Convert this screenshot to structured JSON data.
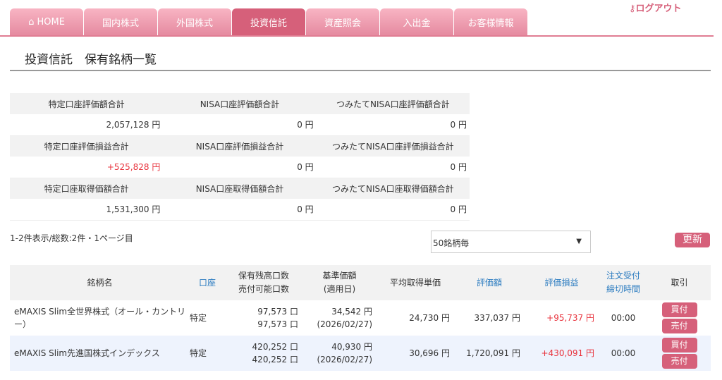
{
  "nav": {
    "tabs": [
      {
        "label": "HOME",
        "icon": "home-icon"
      },
      {
        "label": "国内株式"
      },
      {
        "label": "外国株式"
      },
      {
        "label": "投資信託",
        "active": true
      },
      {
        "label": "資産照会"
      },
      {
        "label": "入出金"
      },
      {
        "label": "お客様情報"
      }
    ],
    "logout": "ログアウト"
  },
  "page_title": "投資信託　保有銘柄一覧",
  "summary": [
    {
      "labels": [
        "特定口座評価額合計",
        "NISA口座評価額合計",
        "つみたてNISA口座評価額合計"
      ],
      "values": [
        "2,057,128 円",
        "0 円",
        "0 円"
      ]
    },
    {
      "labels": [
        "特定口座評価損益合計",
        "NISA口座評価損益合計",
        "つみたてNISA口座評価損益合計"
      ],
      "values": [
        "+525,828 円",
        "0 円",
        "0 円"
      ]
    },
    {
      "labels": [
        "特定口座取得価額合計",
        "NISA口座取得価額合計",
        "つみたてNISA口座取得価額合計"
      ],
      "values": [
        "1,531,300 円",
        "0 円",
        "0 円"
      ]
    }
  ],
  "pagination": "1-2件表示/総数:2件・1ページ目",
  "per_page": {
    "selected": "50銘柄毎"
  },
  "refresh_label": "更新",
  "table": {
    "headers": {
      "name": "銘柄名",
      "account": "口座",
      "qty1": "保有残高口数",
      "qty2": "売付可能口数",
      "nav1": "基準価額",
      "nav2": "(適用日)",
      "avg": "平均取得単価",
      "value": "評価額",
      "pl": "評価損益",
      "deadline1": "注文受付",
      "deadline2": "締切時間",
      "trade": "取引"
    },
    "rows": [
      {
        "name": "eMAXIS Slim全世界株式（オール・カントリー）",
        "account": "特定",
        "qty": "97,573 口",
        "sellable": "97,573 口",
        "nav": "34,542 円",
        "date": "(2026/02/27)",
        "avg": "24,730 円",
        "value": "337,037 円",
        "pl": "+95,737 円",
        "deadline": "00:00",
        "buy": "買付",
        "sell": "売付"
      },
      {
        "name": "eMAXIS Slim先進国株式インデックス",
        "account": "特定",
        "qty": "420,252 口",
        "sellable": "420,252 口",
        "nav": "40,930 円",
        "date": "(2026/02/27)",
        "avg": "30,696 円",
        "value": "1,720,091 円",
        "pl": "+430,091 円",
        "deadline": "00:00",
        "buy": "買付",
        "sell": "売付"
      }
    ]
  },
  "colors": {
    "accent": "#d6607a",
    "profit": "#e8323c",
    "link": "#2a7bc0"
  }
}
